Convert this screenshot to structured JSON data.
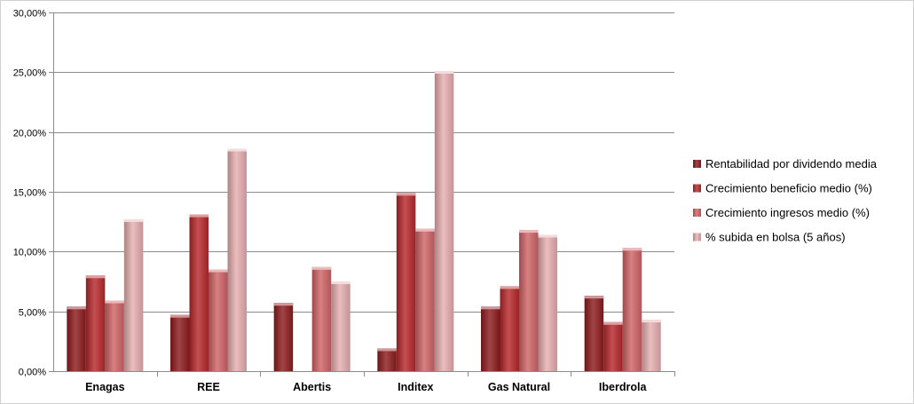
{
  "chart_data": {
    "type": "bar",
    "categories": [
      "Enagas",
      "REE",
      "Abertis",
      "Inditex",
      "Gas Natural",
      "Iberdrola"
    ],
    "series": [
      {
        "name": "Rentabilidad por dividendo media",
        "values": [
          5.4,
          4.7,
          5.7,
          1.9,
          5.4,
          6.3
        ],
        "color": "#8e1b1f"
      },
      {
        "name": "Crecimiento beneficio medio (%)",
        "values": [
          8.0,
          13.1,
          0.0,
          14.9,
          7.1,
          4.1
        ],
        "color": "#b7282c"
      },
      {
        "name": "Crecimiento ingresos medio (%)",
        "values": [
          5.9,
          8.5,
          8.7,
          11.9,
          11.8,
          10.3
        ],
        "color": "#d06467"
      },
      {
        "name": "% subida en bolsa (5 años)",
        "values": [
          12.7,
          18.6,
          7.5,
          25.1,
          11.4,
          4.3
        ],
        "color": "#e6aeb0"
      }
    ],
    "yticks": [
      "0,00%",
      "5,00%",
      "10,00%",
      "15,00%",
      "20,00%",
      "25,00%",
      "30,00%"
    ],
    "ylim": [
      0,
      30
    ],
    "title": "",
    "xlabel": "",
    "ylabel": "",
    "grid": true,
    "legend_position": "right"
  }
}
